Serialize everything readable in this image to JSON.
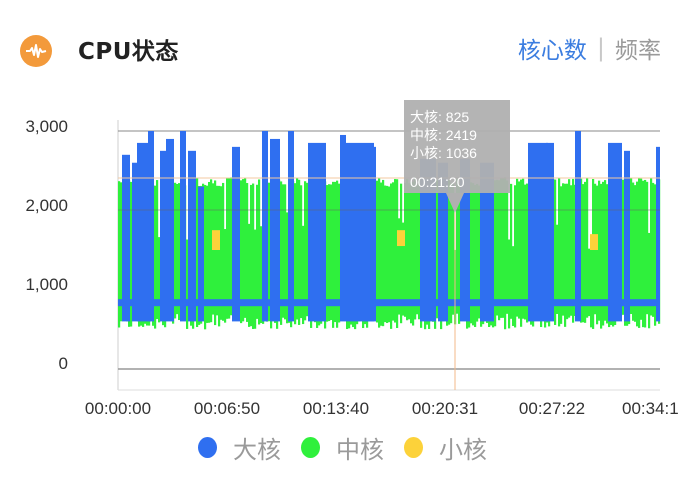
{
  "header": {
    "icon": "waveform-icon",
    "title": "CPU状态",
    "toggle": {
      "active": "核心数",
      "separator": "|",
      "inactive": "频率"
    }
  },
  "colors": {
    "big_core": "#2f6ff0",
    "mid_core": "#2ff03c",
    "little_core": "#fcd23a",
    "accent": "#3b7de0",
    "icon_bg": "#f39a3b",
    "tooltip_bg": "#b0b0b0"
  },
  "tooltip": {
    "lines": [
      "大核: 825",
      "中核: 2419",
      "小核: 1036"
    ],
    "time": "00:21:20"
  },
  "legend": [
    {
      "label": "大核",
      "color": "#2f6ff0"
    },
    {
      "label": "中核",
      "color": "#2ff03c"
    },
    {
      "label": "小核",
      "color": "#fcd23a"
    }
  ],
  "chart_data": {
    "type": "line",
    "title": "CPU状态",
    "xlabel": "",
    "ylabel": "",
    "ylim": [
      0,
      3000
    ],
    "yticks": [
      "3,000",
      "2,000",
      "1,000",
      "0"
    ],
    "xticks": [
      "00:00:00",
      "00:06:50",
      "00:13:40",
      "00:20:31",
      "00:27:22",
      "00:34:1"
    ],
    "grid": true,
    "legend_position": "bottom",
    "reference_lines": [
      2400,
      1700
    ],
    "crosshair_time": "00:21:20",
    "series": [
      {
        "name": "大核",
        "description": "baseline ~850, frequent bursts to 2600-3000",
        "approx_baseline": 850,
        "approx_peak": 3000,
        "value_at_crosshair": 825
      },
      {
        "name": "中核",
        "description": "oscillates between ~600 and ~2400",
        "approx_baseline": 650,
        "approx_peak": 2400,
        "value_at_crosshair": 2419
      },
      {
        "name": "小核",
        "description": "mostly hidden; occasional visible values ~1500-1900",
        "approx_peak": 1900,
        "value_at_crosshair": 1036
      }
    ]
  }
}
